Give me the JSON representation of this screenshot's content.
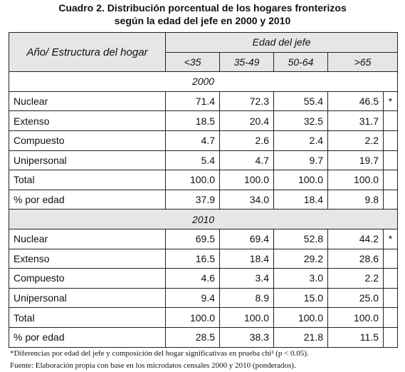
{
  "title": [
    "Cuadro 2. Distribución porcentual de los hogares fronterizos",
    "según la edad del jefe en 2000 y 2010"
  ],
  "header": {
    "row_label": "Año/ Estructura del hogar",
    "group": "Edad del jefe",
    "columns": [
      "<35",
      "35-49",
      "50-64",
      ">65"
    ]
  },
  "sections": [
    {
      "year": "2000",
      "rows": [
        {
          "label": "Nuclear",
          "values": [
            "71.4",
            "72.3",
            "55.4",
            "46.5"
          ],
          "note": "*"
        },
        {
          "label": "Extenso",
          "values": [
            "18.5",
            "20.4",
            "32.5",
            "31.7"
          ]
        },
        {
          "label": "Compuesto",
          "values": [
            "4.7",
            "2.6",
            "2.4",
            "2.2"
          ]
        },
        {
          "label": "Unipersonal",
          "values": [
            "5.4",
            "4.7",
            "9.7",
            "19.7"
          ]
        },
        {
          "label": "Total",
          "values": [
            "100.0",
            "100.0",
            "100.0",
            "100.0"
          ]
        },
        {
          "label": "% por edad",
          "values": [
            "37.9",
            "34.0",
            "18.4",
            "9.8"
          ]
        }
      ]
    },
    {
      "year": "2010",
      "rows": [
        {
          "label": "Nuclear",
          "values": [
            "69.5",
            "69.4",
            "52.8",
            "44.2"
          ],
          "note": "*"
        },
        {
          "label": "Extenso",
          "values": [
            "16.5",
            "18.4",
            "29.2",
            "28.6"
          ]
        },
        {
          "label": "Compuesto",
          "values": [
            "4.6",
            "3.4",
            "3.0",
            "2.2"
          ]
        },
        {
          "label": "Unipersonal",
          "values": [
            "9.4",
            "8.9",
            "15.0",
            "25.0"
          ]
        },
        {
          "label": "Total",
          "values": [
            "100.0",
            "100.0",
            "100.0",
            "100.0"
          ]
        },
        {
          "label": "% por edad",
          "values": [
            "28.5",
            "38.3",
            "21.8",
            "11.5"
          ]
        }
      ]
    }
  ],
  "footnotes": [
    "*Diferencias por edad del jefe  y composición del hogar significativas en prueba chi² (p < 0.05).",
    "Fuente: Elaboración propia con base en los microdatos censales 2000 y 2010 (ponderados)."
  ]
}
